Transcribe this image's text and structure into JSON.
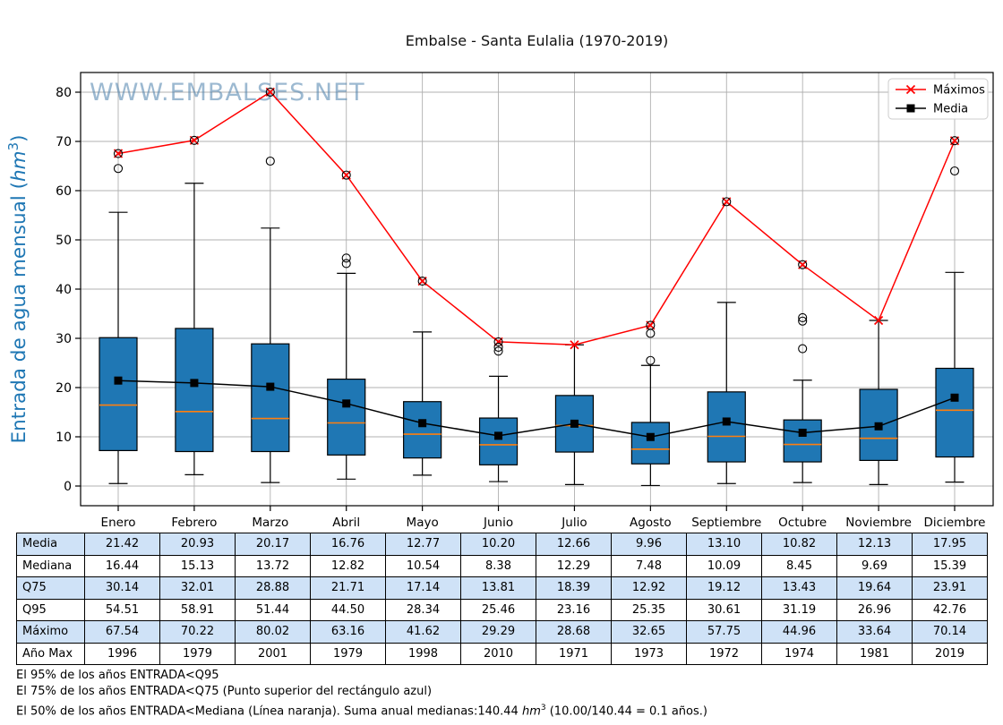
{
  "watermark": "WWW.EMBALSES.NET",
  "legend": {
    "maximos": "Máximos",
    "media": "Media"
  },
  "ylabel": {
    "prefix": "Entrada de agua mensual (",
    "unit": "hm",
    "exp": "3",
    "suffix": ")"
  },
  "chart_data": {
    "type": "boxplot",
    "title": "Embalse - Santa Eulalia (1970-2019)",
    "categories": [
      "Enero",
      "Febrero",
      "Marzo",
      "Abril",
      "Mayo",
      "Junio",
      "Julio",
      "Agosto",
      "Septiembre",
      "Octubre",
      "Noviembre",
      "Diciembre"
    ],
    "ylim": [
      -4,
      84
    ],
    "yticks": [
      0,
      10,
      20,
      30,
      40,
      50,
      60,
      70,
      80
    ],
    "grid": true,
    "legend_position": "upper right",
    "colors": {
      "box_fill": "#1f77b4",
      "median": "#ff7f0e",
      "maximos": "#ff0000",
      "media": "#000000",
      "grid": "#b0b0b0",
      "watermark": "#4a7fab",
      "axis_label": "#1f77b4"
    },
    "series": [
      {
        "name": "Máximos",
        "color": "#ff0000",
        "marker": "x",
        "values": [
          67.54,
          70.22,
          80.02,
          63.16,
          41.62,
          29.29,
          28.68,
          32.65,
          57.75,
          44.96,
          33.64,
          70.14
        ]
      },
      {
        "name": "Media",
        "color": "#000000",
        "marker": "square",
        "values": [
          21.42,
          20.93,
          20.17,
          16.76,
          12.77,
          10.2,
          12.66,
          9.96,
          13.1,
          10.82,
          12.13,
          17.95
        ]
      }
    ],
    "boxes": {
      "q1": [
        7.2,
        7.0,
        7.0,
        6.3,
        5.7,
        4.3,
        6.9,
        4.5,
        4.9,
        4.9,
        5.2,
        5.9
      ],
      "median": [
        16.44,
        15.13,
        13.72,
        12.82,
        10.54,
        8.38,
        12.29,
        7.48,
        10.09,
        8.45,
        9.69,
        15.39
      ],
      "q3": [
        30.14,
        32.01,
        28.88,
        21.71,
        17.14,
        13.81,
        18.39,
        12.92,
        19.12,
        13.43,
        19.64,
        23.91
      ],
      "whisker_low": [
        0.5,
        2.3,
        0.7,
        1.4,
        2.2,
        0.9,
        0.3,
        0.1,
        0.5,
        0.7,
        0.3,
        0.8
      ],
      "whisker_high": [
        55.6,
        61.5,
        52.4,
        43.2,
        31.3,
        22.3,
        28.68,
        24.5,
        37.3,
        21.5,
        33.64,
        43.4
      ],
      "outliers": [
        [
          64.5,
          67.54
        ],
        [
          70.22
        ],
        [
          66.0,
          80.02
        ],
        [
          45.2,
          46.3,
          63.16
        ],
        [
          41.62
        ],
        [
          27.4,
          28.2,
          29.29
        ],
        [],
        [
          25.5,
          31.0,
          32.65
        ],
        [
          57.75
        ],
        [
          27.9,
          33.5,
          34.2,
          44.96
        ],
        [],
        [
          64.0,
          70.14
        ]
      ]
    }
  },
  "table": {
    "rows": [
      {
        "label": "Media",
        "values": [
          "21.42",
          "20.93",
          "20.17",
          "16.76",
          "12.77",
          "10.20",
          "12.66",
          "9.96",
          "13.10",
          "10.82",
          "12.13",
          "17.95"
        ]
      },
      {
        "label": "Mediana",
        "values": [
          "16.44",
          "15.13",
          "13.72",
          "12.82",
          "10.54",
          "8.38",
          "12.29",
          "7.48",
          "10.09",
          "8.45",
          "9.69",
          "15.39"
        ]
      },
      {
        "label": "Q75",
        "values": [
          "30.14",
          "32.01",
          "28.88",
          "21.71",
          "17.14",
          "13.81",
          "18.39",
          "12.92",
          "19.12",
          "13.43",
          "19.64",
          "23.91"
        ]
      },
      {
        "label": "Q95",
        "values": [
          "54.51",
          "58.91",
          "51.44",
          "44.50",
          "28.34",
          "25.46",
          "23.16",
          "25.35",
          "30.61",
          "31.19",
          "26.96",
          "42.76"
        ]
      },
      {
        "label": "Máximo",
        "values": [
          "67.54",
          "70.22",
          "80.02",
          "63.16",
          "41.62",
          "29.29",
          "28.68",
          "32.65",
          "57.75",
          "44.96",
          "33.64",
          "70.14"
        ]
      },
      {
        "label": "Año Max",
        "values": [
          "1996",
          "1979",
          "2001",
          "1979",
          "1998",
          "2010",
          "1971",
          "1973",
          "1972",
          "1974",
          "1981",
          "2019"
        ]
      }
    ]
  },
  "footnotes": {
    "line1": "El 95% de los años ENTRADA<Q95",
    "line2": "El 75% de los años ENTRADA<Q75 (Punto superior del rectángulo azul)",
    "line3_prefix": "El 50% de los años ENTRADA<Mediana (Línea naranja). Suma anual medianas:140.44 ",
    "line3_unit": "hm",
    "line3_exp": "3",
    "line3_suffix": " (10.00/140.44 = 0.1 años.)"
  }
}
